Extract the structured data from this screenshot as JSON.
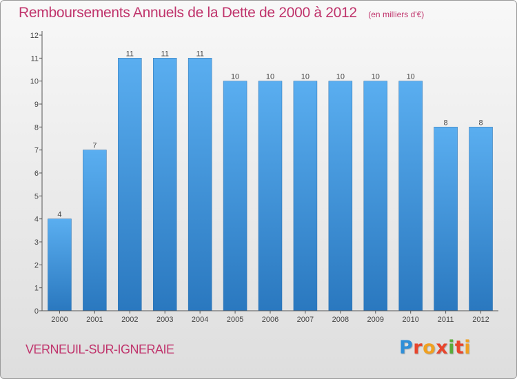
{
  "chart_data": {
    "type": "bar",
    "title": "Remboursements Annuels de la Dette de 2000 à 2012",
    "unit": "(en milliers d'€)",
    "categories": [
      "2000",
      "2001",
      "2002",
      "2003",
      "2004",
      "2005",
      "2006",
      "2007",
      "2008",
      "2009",
      "2010",
      "2011",
      "2012"
    ],
    "values": [
      4,
      7,
      11,
      11,
      11,
      10,
      10,
      10,
      10,
      10,
      10,
      8,
      8
    ],
    "data_labels": [
      "4",
      "7",
      "11",
      "11",
      "11",
      "10",
      "10",
      "10",
      "10",
      "10",
      "10",
      "8",
      "8"
    ],
    "ylim": [
      0,
      12
    ],
    "yticks": [
      0,
      1,
      2,
      3,
      4,
      5,
      6,
      7,
      8,
      9,
      10,
      11,
      12
    ],
    "xlabel": "",
    "ylabel": "",
    "grid": false,
    "bar_color": "#3a8fd6"
  },
  "footer": {
    "commune": "VERNEUIL-SUR-IGNERAIE"
  },
  "logo": {
    "text": "Proxiti",
    "letters": [
      "P",
      "r",
      "o",
      "x",
      "i",
      "t",
      "i"
    ],
    "colors": [
      "#2f8fd8",
      "#e8452c",
      "#f0a020",
      "#e8452c",
      "#5aaa3a",
      "#e8452c",
      "#f0a020"
    ]
  }
}
